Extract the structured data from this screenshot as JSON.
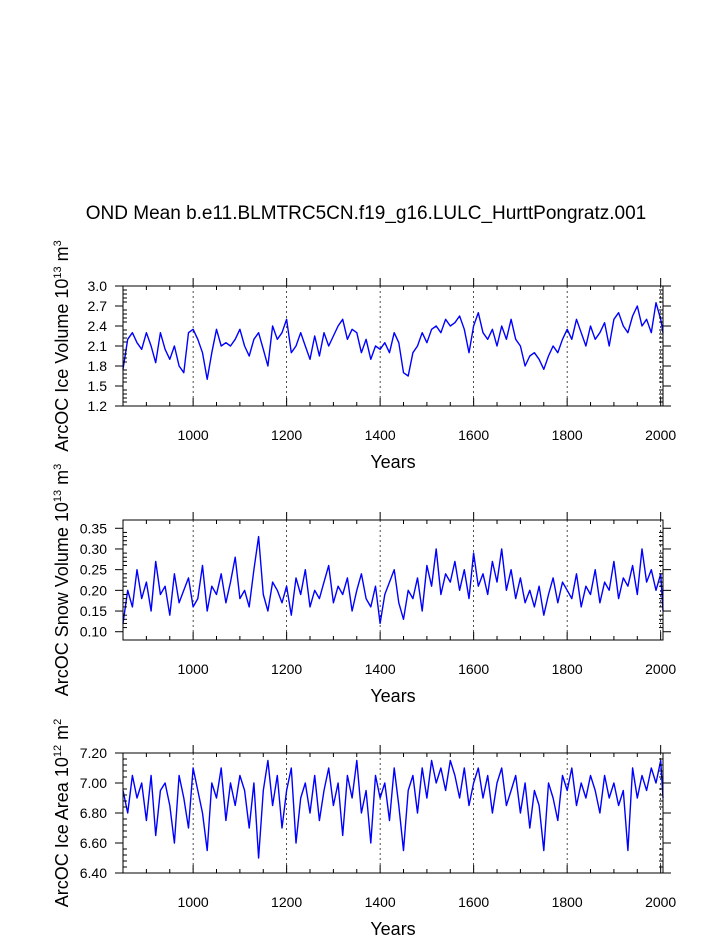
{
  "title": "OND Mean b.e11.BLMTRC5CN.f19_g16.LULC_HurttPongratz.001",
  "chart_data": [
    {
      "type": "line",
      "xlabel": "Years",
      "ylabel": {
        "base": "ArcOC Ice Volume 10",
        "exp": "13",
        "unit": " m",
        "unit_exp": "3"
      },
      "xlim": [
        850,
        2005
      ],
      "ylim": [
        1.2,
        3.0
      ],
      "xticks": [
        1000,
        1200,
        1400,
        1600,
        1800,
        2000
      ],
      "xtick_labels": [
        "1000",
        "1200",
        "1400",
        "1600",
        "1800",
        "2000"
      ],
      "yticks": [
        1.2,
        1.5,
        1.8,
        2.1,
        2.4,
        2.7,
        3.0
      ],
      "ytick_labels": [
        "1.2",
        "1.5",
        "1.8",
        "2.1",
        "2.4",
        "2.7",
        "3.0"
      ],
      "grid": "dashed vertical at x ticks",
      "series": [
        {
          "name": "ArcOC Ice Volume",
          "color": "#0000ff",
          "x": [
            850,
            860,
            870,
            880,
            890,
            900,
            910,
            920,
            930,
            940,
            950,
            960,
            970,
            980,
            990,
            1000,
            1010,
            1020,
            1030,
            1040,
            1050,
            1060,
            1070,
            1080,
            1090,
            1100,
            1110,
            1120,
            1130,
            1140,
            1150,
            1160,
            1170,
            1180,
            1190,
            1200,
            1210,
            1220,
            1230,
            1240,
            1250,
            1260,
            1270,
            1280,
            1290,
            1300,
            1310,
            1320,
            1330,
            1340,
            1350,
            1360,
            1370,
            1380,
            1390,
            1400,
            1410,
            1420,
            1430,
            1440,
            1450,
            1460,
            1470,
            1480,
            1490,
            1500,
            1510,
            1520,
            1530,
            1540,
            1550,
            1560,
            1570,
            1580,
            1590,
            1600,
            1610,
            1620,
            1630,
            1640,
            1650,
            1660,
            1670,
            1680,
            1690,
            1700,
            1710,
            1720,
            1730,
            1740,
            1750,
            1760,
            1770,
            1780,
            1790,
            1800,
            1810,
            1820,
            1830,
            1840,
            1850,
            1860,
            1870,
            1880,
            1890,
            1900,
            1910,
            1920,
            1930,
            1940,
            1950,
            1960,
            1970,
            1980,
            1990,
            2000,
            2005
          ],
          "y": [
            1.75,
            2.2,
            2.3,
            2.15,
            2.05,
            2.3,
            2.1,
            1.85,
            2.3,
            2.05,
            1.9,
            2.1,
            1.8,
            1.7,
            2.3,
            2.35,
            2.2,
            2.0,
            1.6,
            2.0,
            2.35,
            2.1,
            2.15,
            2.1,
            2.2,
            2.35,
            2.1,
            1.95,
            2.2,
            2.3,
            2.05,
            1.8,
            2.4,
            2.2,
            2.3,
            2.5,
            2.0,
            2.1,
            2.3,
            2.1,
            1.9,
            2.25,
            1.95,
            2.3,
            2.1,
            2.25,
            2.4,
            2.5,
            2.2,
            2.35,
            2.3,
            2.0,
            2.2,
            1.9,
            2.1,
            2.05,
            2.15,
            2.0,
            2.3,
            2.15,
            1.7,
            1.65,
            2.0,
            2.1,
            2.3,
            2.15,
            2.35,
            2.4,
            2.3,
            2.5,
            2.4,
            2.45,
            2.55,
            2.35,
            2.0,
            2.4,
            2.6,
            2.3,
            2.2,
            2.35,
            2.1,
            2.4,
            2.2,
            2.5,
            2.2,
            2.1,
            1.8,
            1.95,
            2.0,
            1.9,
            1.75,
            1.95,
            2.1,
            2.0,
            2.2,
            2.35,
            2.2,
            2.5,
            2.3,
            2.1,
            2.4,
            2.2,
            2.3,
            2.45,
            2.1,
            2.5,
            2.6,
            2.4,
            2.3,
            2.55,
            2.7,
            2.4,
            2.5,
            2.3,
            2.75,
            2.5,
            2.3
          ]
        }
      ]
    },
    {
      "type": "line",
      "xlabel": "Years",
      "ylabel": {
        "base": "ArcOC Snow Volume 10",
        "exp": "13",
        "unit": " m",
        "unit_exp": "3"
      },
      "xlim": [
        850,
        2005
      ],
      "ylim": [
        0.08,
        0.37
      ],
      "xticks": [
        1000,
        1200,
        1400,
        1600,
        1800,
        2000
      ],
      "xtick_labels": [
        "1000",
        "1200",
        "1400",
        "1600",
        "1800",
        "2000"
      ],
      "yticks": [
        0.1,
        0.15,
        0.2,
        0.25,
        0.3,
        0.35
      ],
      "ytick_labels": [
        "0.10",
        "0.15",
        "0.20",
        "0.25",
        "0.30",
        "0.35"
      ],
      "grid": "dashed vertical at x ticks",
      "series": [
        {
          "name": "ArcOC Snow Volume",
          "color": "#0000ff",
          "x": [
            850,
            860,
            870,
            880,
            890,
            900,
            910,
            920,
            930,
            940,
            950,
            960,
            970,
            980,
            990,
            1000,
            1010,
            1020,
            1030,
            1040,
            1050,
            1060,
            1070,
            1080,
            1090,
            1100,
            1110,
            1120,
            1130,
            1140,
            1150,
            1160,
            1170,
            1180,
            1190,
            1200,
            1210,
            1220,
            1230,
            1240,
            1250,
            1260,
            1270,
            1280,
            1290,
            1300,
            1310,
            1320,
            1330,
            1340,
            1350,
            1360,
            1370,
            1380,
            1390,
            1400,
            1410,
            1420,
            1430,
            1440,
            1450,
            1460,
            1470,
            1480,
            1490,
            1500,
            1510,
            1520,
            1530,
            1540,
            1550,
            1560,
            1570,
            1580,
            1590,
            1600,
            1610,
            1620,
            1630,
            1640,
            1650,
            1660,
            1670,
            1680,
            1690,
            1700,
            1710,
            1720,
            1730,
            1740,
            1750,
            1760,
            1770,
            1780,
            1790,
            1800,
            1810,
            1820,
            1830,
            1840,
            1850,
            1860,
            1870,
            1880,
            1890,
            1900,
            1910,
            1920,
            1930,
            1940,
            1950,
            1960,
            1970,
            1980,
            1990,
            2000,
            2005
          ],
          "y": [
            0.12,
            0.2,
            0.16,
            0.25,
            0.18,
            0.22,
            0.15,
            0.27,
            0.19,
            0.21,
            0.14,
            0.24,
            0.17,
            0.2,
            0.23,
            0.16,
            0.18,
            0.26,
            0.15,
            0.21,
            0.19,
            0.24,
            0.17,
            0.22,
            0.28,
            0.18,
            0.2,
            0.16,
            0.25,
            0.33,
            0.19,
            0.15,
            0.22,
            0.2,
            0.17,
            0.21,
            0.14,
            0.23,
            0.19,
            0.25,
            0.16,
            0.2,
            0.18,
            0.22,
            0.26,
            0.17,
            0.21,
            0.19,
            0.23,
            0.15,
            0.2,
            0.24,
            0.18,
            0.16,
            0.21,
            0.12,
            0.19,
            0.22,
            0.25,
            0.17,
            0.13,
            0.2,
            0.18,
            0.23,
            0.15,
            0.26,
            0.21,
            0.3,
            0.19,
            0.24,
            0.22,
            0.27,
            0.2,
            0.25,
            0.18,
            0.29,
            0.21,
            0.24,
            0.19,
            0.27,
            0.22,
            0.3,
            0.2,
            0.25,
            0.18,
            0.23,
            0.17,
            0.2,
            0.16,
            0.21,
            0.14,
            0.19,
            0.23,
            0.17,
            0.22,
            0.2,
            0.18,
            0.24,
            0.16,
            0.21,
            0.19,
            0.25,
            0.17,
            0.22,
            0.2,
            0.27,
            0.18,
            0.23,
            0.21,
            0.26,
            0.19,
            0.3,
            0.22,
            0.25,
            0.2,
            0.24,
            0.15
          ]
        }
      ]
    },
    {
      "type": "line",
      "xlabel": "Years",
      "ylabel": {
        "base": "ArcOC Ice Area 10",
        "exp": "12",
        "unit": " m",
        "unit_exp": "2"
      },
      "xlim": [
        850,
        2005
      ],
      "ylim": [
        6.4,
        7.2
      ],
      "xticks": [
        1000,
        1200,
        1400,
        1600,
        1800,
        2000
      ],
      "xtick_labels": [
        "1000",
        "1200",
        "1400",
        "1600",
        "1800",
        "2000"
      ],
      "yticks": [
        6.4,
        6.6,
        6.8,
        7.0,
        7.2
      ],
      "ytick_labels": [
        "6.40",
        "6.60",
        "6.80",
        "7.00",
        "7.20"
      ],
      "grid": "dashed vertical at x ticks",
      "series": [
        {
          "name": "ArcOC Ice Area",
          "color": "#0000ff",
          "x": [
            850,
            860,
            870,
            880,
            890,
            900,
            910,
            920,
            930,
            940,
            950,
            960,
            970,
            980,
            990,
            1000,
            1010,
            1020,
            1030,
            1040,
            1050,
            1060,
            1070,
            1080,
            1090,
            1100,
            1110,
            1120,
            1130,
            1140,
            1150,
            1160,
            1170,
            1180,
            1190,
            1200,
            1210,
            1220,
            1230,
            1240,
            1250,
            1260,
            1270,
            1280,
            1290,
            1300,
            1310,
            1320,
            1330,
            1340,
            1350,
            1360,
            1370,
            1380,
            1390,
            1400,
            1410,
            1420,
            1430,
            1440,
            1450,
            1460,
            1470,
            1480,
            1490,
            1500,
            1510,
            1520,
            1530,
            1540,
            1550,
            1560,
            1570,
            1580,
            1590,
            1600,
            1610,
            1620,
            1630,
            1640,
            1650,
            1660,
            1670,
            1680,
            1690,
            1700,
            1710,
            1720,
            1730,
            1740,
            1750,
            1760,
            1770,
            1780,
            1790,
            1800,
            1810,
            1820,
            1830,
            1840,
            1850,
            1860,
            1870,
            1880,
            1890,
            1900,
            1910,
            1920,
            1930,
            1940,
            1950,
            1960,
            1970,
            1980,
            1990,
            2000,
            2005
          ],
          "y": [
            6.95,
            6.8,
            7.05,
            6.9,
            7.0,
            6.75,
            7.05,
            6.65,
            6.95,
            7.0,
            6.85,
            6.6,
            7.05,
            6.9,
            6.7,
            7.1,
            6.95,
            6.8,
            6.55,
            7.0,
            6.9,
            7.1,
            6.75,
            7.0,
            6.85,
            7.05,
            6.95,
            6.7,
            7.0,
            6.5,
            6.95,
            7.15,
            6.85,
            7.05,
            6.7,
            6.95,
            7.1,
            6.6,
            6.9,
            7.0,
            6.8,
            7.05,
            6.75,
            6.95,
            7.1,
            6.85,
            7.0,
            6.65,
            7.05,
            6.9,
            7.15,
            6.8,
            6.95,
            6.6,
            7.05,
            6.9,
            7.0,
            6.75,
            7.1,
            6.85,
            6.55,
            6.95,
            7.05,
            6.8,
            7.1,
            6.9,
            7.15,
            7.0,
            7.1,
            6.95,
            7.15,
            7.05,
            6.9,
            7.1,
            6.85,
            7.0,
            7.1,
            6.9,
            7.05,
            6.8,
            7.0,
            7.1,
            6.85,
            6.95,
            7.05,
            6.8,
            7.0,
            6.7,
            6.95,
            6.85,
            6.55,
            7.0,
            6.9,
            6.75,
            7.05,
            6.95,
            7.1,
            6.85,
            7.0,
            6.9,
            7.05,
            6.95,
            6.8,
            7.05,
            6.9,
            7.0,
            6.85,
            6.95,
            6.55,
            7.1,
            6.9,
            7.05,
            6.95,
            7.1,
            7.0,
            7.15,
            6.9
          ]
        }
      ]
    }
  ]
}
